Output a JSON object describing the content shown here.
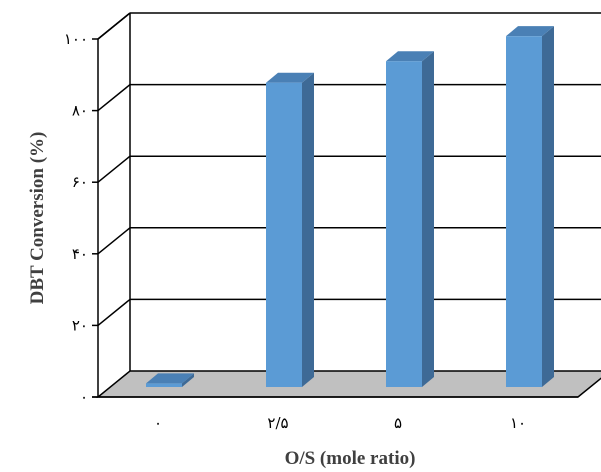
{
  "chart_data": {
    "type": "bar",
    "categories": [
      "۰",
      "۲/۵",
      "۵",
      "۱۰"
    ],
    "values": [
      1,
      85,
      91,
      98
    ],
    "xlabel": "O/S (mole ratio)",
    "ylabel": "DBT Conversion (%)",
    "ylim": [
      0,
      100
    ],
    "yticks": [
      0,
      20,
      40,
      60,
      80,
      100
    ],
    "ytick_labels": [
      "۰",
      "۲۰",
      "۴۰",
      "۶۰",
      "۸۰",
      "۱۰۰"
    ],
    "grid": true,
    "style": "3d",
    "colors": {
      "bar_front": "#5b9bd5",
      "bar_side": "#3e6a96",
      "bar_top": "#4a80b5",
      "floor": "#c0c0c0"
    }
  }
}
